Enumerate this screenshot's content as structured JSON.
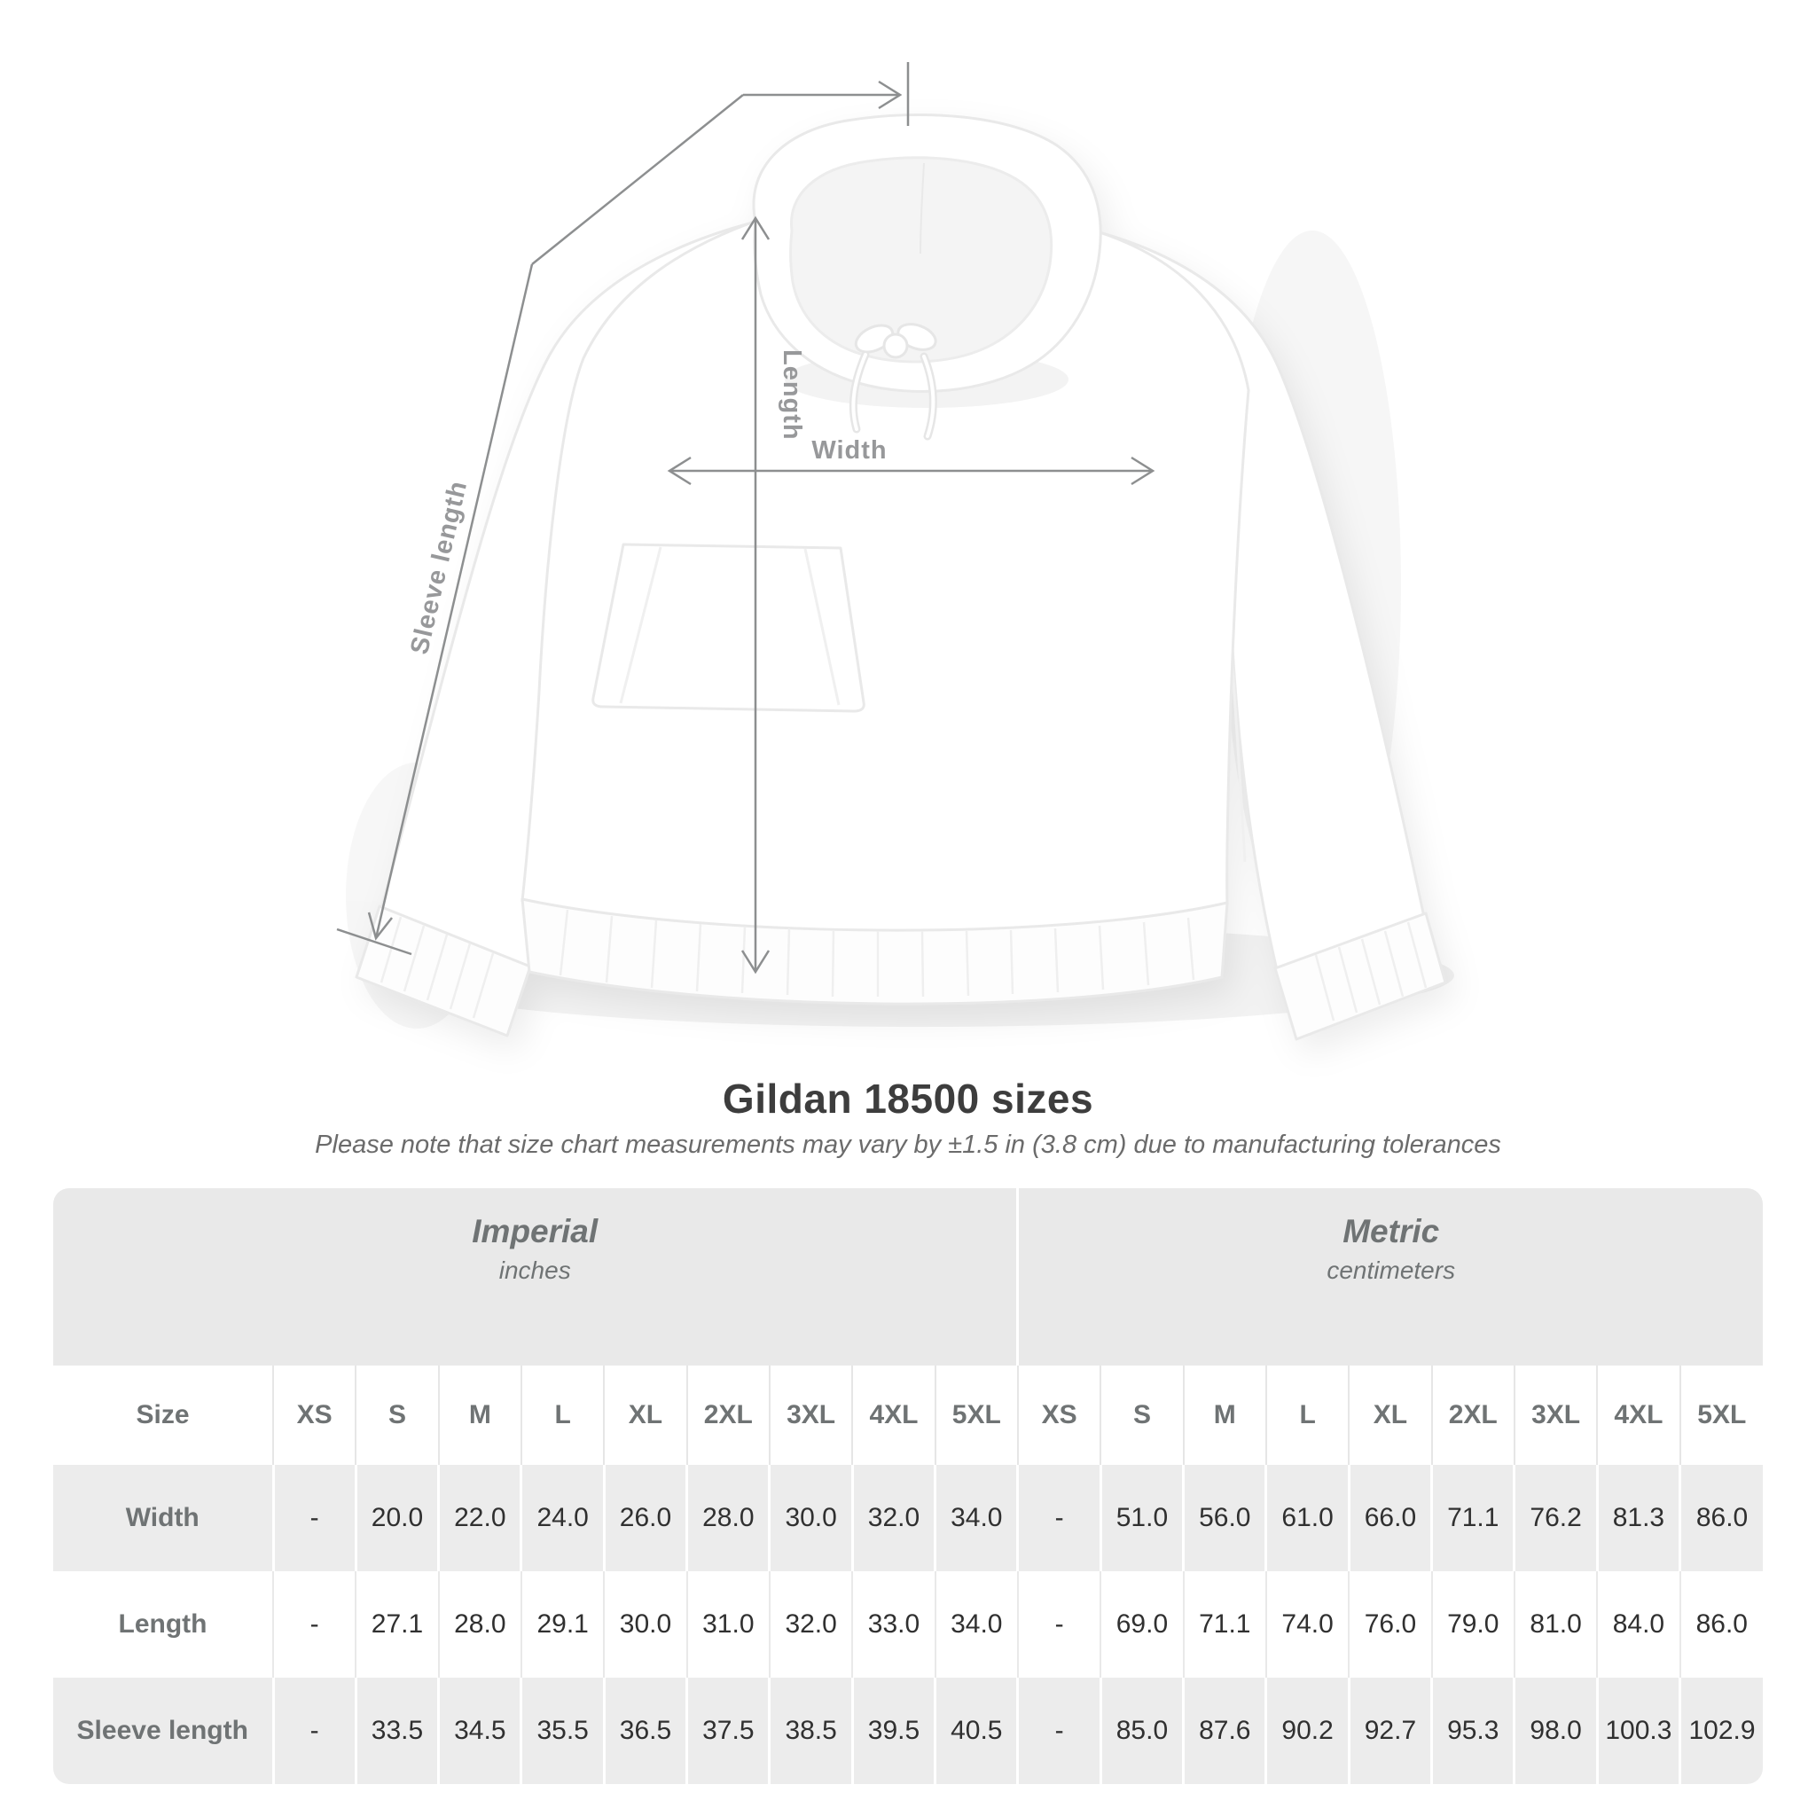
{
  "title": "Gildan 18500 sizes",
  "subtitle": "Please note that size chart measurements may vary by ±1.5 in (3.8 cm) due to manufacturing tolerances",
  "figure": {
    "labels": {
      "sleeve_length": "Sleeve length",
      "length": "Length",
      "width": "Width"
    }
  },
  "table": {
    "groups": [
      {
        "name": "Imperial",
        "unit": "inches"
      },
      {
        "name": "Metric",
        "unit": "centimeters"
      }
    ],
    "size_header": "Size",
    "sizes": [
      "XS",
      "S",
      "M",
      "L",
      "XL",
      "2XL",
      "3XL",
      "4XL",
      "5XL"
    ],
    "rows": [
      {
        "label": "Width",
        "imperial": [
          "-",
          "20.0",
          "22.0",
          "24.0",
          "26.0",
          "28.0",
          "30.0",
          "32.0",
          "34.0"
        ],
        "metric": [
          "-",
          "51.0",
          "56.0",
          "61.0",
          "66.0",
          "71.1",
          "76.2",
          "81.3",
          "86.0"
        ]
      },
      {
        "label": "Length",
        "imperial": [
          "-",
          "27.1",
          "28.0",
          "29.1",
          "30.0",
          "31.0",
          "32.0",
          "33.0",
          "34.0"
        ],
        "metric": [
          "-",
          "69.0",
          "71.1",
          "74.0",
          "76.0",
          "79.0",
          "81.0",
          "84.0",
          "86.0"
        ]
      },
      {
        "label": "Sleeve length",
        "imperial": [
          "-",
          "33.5",
          "34.5",
          "35.5",
          "36.5",
          "37.5",
          "38.5",
          "39.5",
          "40.5"
        ],
        "metric": [
          "-",
          "85.0",
          "87.6",
          "90.2",
          "92.7",
          "95.3",
          "98.0",
          "100.3",
          "102.9"
        ]
      }
    ]
  },
  "colors": {
    "accent_gray_bg": "#e9e9e9",
    "alt_row_bg": "#ececec",
    "header_text": "#6f7374",
    "value_text": "#303030",
    "title_text": "#3d3d3d",
    "note_text": "#6b6b6b",
    "measure_line": "#8d8f90",
    "measure_label": "#97989a"
  }
}
